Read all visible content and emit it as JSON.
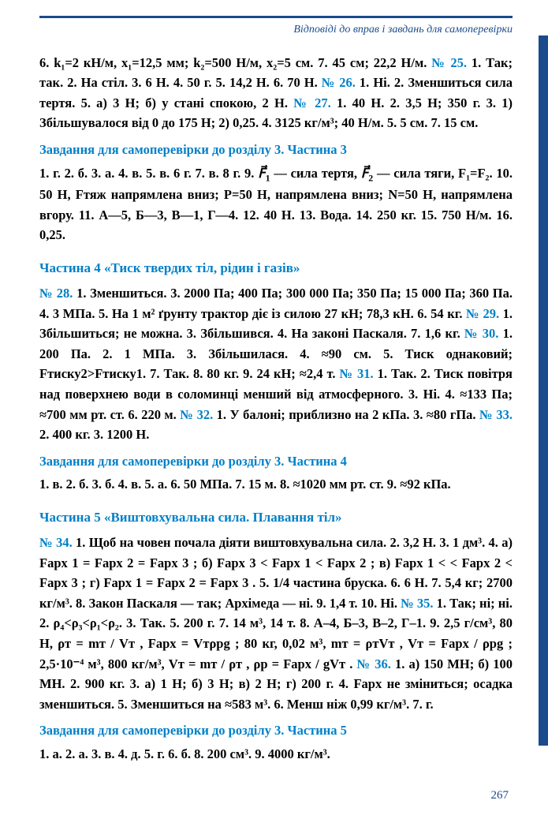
{
  "header": {
    "title": "Відповіді до вправ і завдань для самоперевірки"
  },
  "colors": {
    "blue_heading": "#0080c8",
    "blue_dark": "#1a4b8c",
    "text": "#000000",
    "background": "#ffffff"
  },
  "blocks": {
    "p1": "6. k₁=2 кН/м, x₁=12,5 мм; k₂=500 Н/м, x₂=5 см. 7. 45 см; 22,2 Н/м.",
    "n25": "№ 25.",
    "p2": " 1. Так; так. 2. На стіл. 3. 6 Н. 4. 50 г. 5. 14,2 Н. 6. 70 Н.",
    "n26": "№ 26.",
    "p3": " 1. Ні. 2. Зменшиться сила тертя. 5. а) 3 Н; б) у стані спокою, 2 Н. ",
    "n27": "№ 27.",
    "p4": " 1. 40 Н. 2. 3,5 Н; 350 г. 3. 1) Збільшувалося від 0 до 175 Н; 2) 0,25. 4. 3125 кг/м³; 40 Н/м. 5. 5 см. 7. 15 см.",
    "h1": "Завдання для самоперевірки до розділу 3. Частина 3",
    "p5a": "1. г. 2. б. 3. а. 4. в. 5. в. 6 г. 7. в. 8 г. 9. ",
    "p5b": " — сила тертя, ",
    "p5c": " — сила тяги, F₁=F₂. 10. 50 Н, Fтяж напрямлена вниз; P=50 Н, напрямлена вниз; N=50 Н, напрямлена вгору. 11. А—5, Б—3, В—1, Г—4. 12. 40 Н. 13. Вода. 14. 250 кг. 15. 750 Н/м. 16. 0,25.",
    "sec4": "Частина 4 «Тиск твердих тіл, рідин і газів»",
    "n28": "№ 28.",
    "p6": " 1. Зменшиться. 3. 2000 Па; 400 Па; 300 000 Па; 350 Па; 15 000 Па; 360 Па. 4. 3 МПа. 5. На 1 м² ґрунту трактор діє із силою 27 кН; 78,3 кН. 6. 54 кг. ",
    "n29": "№ 29.",
    "p7": " 1. Збільшиться; не можна. 3. Збільшився. 4. На законі Паскаля. 7. 1,6 кг. ",
    "n30": "№ 30.",
    "p8": " 1. 200 Па. 2. 1 МПа. 3. Збільшилася. 4. ≈90 см. 5. Тиск однаковий; Fтиску2>Fтиску1. 7. Так. 8. 80 кг. 9. 24 кН; ≈2,4 т. ",
    "n31": "№ 31.",
    "p9": " 1. Так. 2. Тиск повітря над поверхнею води в соломинці менший від атмосферного. 3. Ні. 4. ≈133 Па; ≈700 мм рт. ст. 6. 220 м. ",
    "n32": "№ 32.",
    "p10": " 1. У балоні; приблизно на 2 кПа. 3. ≈80 гПа. ",
    "n33": "№ 33.",
    "p11": " 2. 400 кг. 3. 1200 Н.",
    "h2": "Завдання для самоперевірки до розділу 3. Частина 4",
    "p12": "1. в. 2. б. 3. б. 4. в. 5. а. 6. 50 МПа. 7. 15 м. 8. ≈1020 мм рт. ст. 9. ≈92 кПа.",
    "sec5": "Частина 5 «Виштовхувальна сила. Плавання тіл»",
    "n34": "№ 34.",
    "p13": " 1. Щоб на човен почала діяти виштовхувальна сила. 2. 3,2 Н. 3. 1 дм³. 4. а)  Fарх 1 = Fарх 2 = Fарх 3 ; б)  Fарх 3 < Fарх 1 < Fарх 2 ; в)  Fарх 1 < < Fарх 2 < Fарх 3 ;  г)  Fарх 1 = Fарх 2 = Fарх 3 .  5.  1/4  частина  бруска. 6. 6 Н. 7. 5,4 кг; 2700 кг/м³. 8. Закон Паскаля — так; Архімеда — ні. 9. 1,4 т. 10. Ні. ",
    "n35": "№ 35.",
    "p14": " 1. Так; ні; ні. 2. ρ₄<ρ₃<ρ₁<ρ₂. 3. Так. 5. 200 г. 7. 14 м³, 14 т. 8. А–4, Б–3, В–2, Г–1. 9. 2,5 г/см³, 80 Н, ρт = mт / Vт ,  Fарх = Vтρрg ; 80 кг, 0,02 м³, mт = ρтVт ,  Vт = Fарх / ρрg ;  2,5·10⁻⁴ м³,  800 кг/м³,  Vт = mт / ρт , ρр = Fарх / gVт . ",
    "n36": "№ 36.",
    "p15": " 1. а) 150 МН; б) 100 МН. 2. 900 кг. 3. а) 1 Н; б) 3 Н; в) 2 Н; г) 200 г. 4. Fарх не зміниться; осадка зменшиться. 5. Зменшиться на ≈583 м³. 6. Менш ніж 0,99 кг/м³. 7. г.",
    "h3": "Завдання для самоперевірки до розділу 3. Частина 5",
    "p16": "1. а. 2. а. 3. в. 4. д. 5. г. 6. б. 8. 200 см³. 9. 4000 кг/м³."
  },
  "page_number": "267"
}
